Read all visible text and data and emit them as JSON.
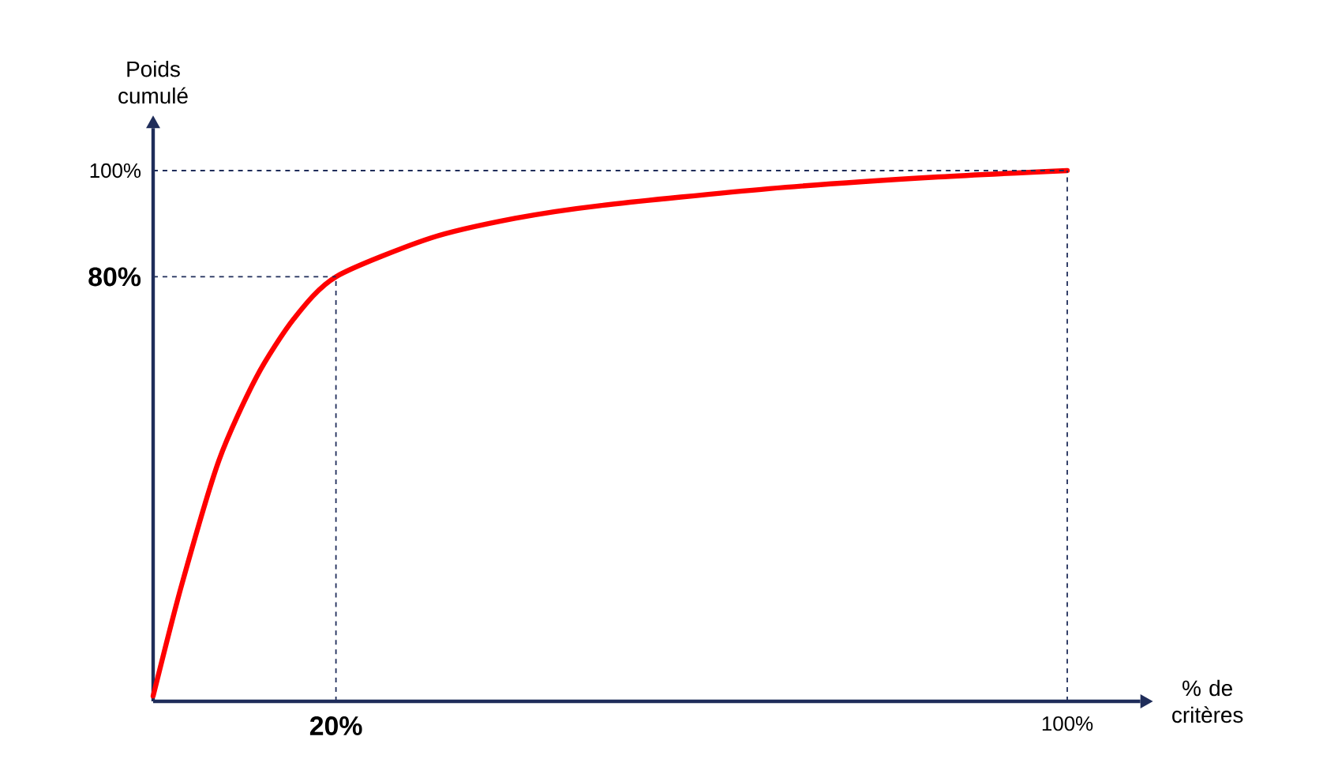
{
  "chart_data": {
    "type": "line",
    "xlabel": "% de critères",
    "ylabel": "Poids cumulé",
    "x": [
      0,
      3.1,
      7.2,
      11.3,
      15.4,
      20,
      30.4,
      39.6,
      48.9,
      67.4,
      85.9,
      100
    ],
    "series": [
      {
        "color": "#ff0000",
        "values": [
          1,
          21.8,
          45.4,
          61.1,
          72.1,
          80,
          87.3,
          91.0,
          93.4,
          96.6,
          98.8,
          100
        ]
      }
    ],
    "xlim": [
      0,
      108
    ],
    "ylim": [
      0,
      108
    ],
    "xticks": [
      {
        "value": 20,
        "label": "20%"
      },
      {
        "value": 100,
        "label": "100%"
      }
    ],
    "yticks": [
      {
        "value": 80,
        "label": "80%"
      },
      {
        "value": 100,
        "label": "100%"
      }
    ],
    "ref_lines": [
      {
        "axis": "x",
        "value": 20,
        "line_style": "dashed"
      },
      {
        "axis": "y",
        "value": 80,
        "line_style": "dashed"
      },
      {
        "axis": "x",
        "value": 100,
        "line_style": "dashed"
      },
      {
        "axis": "y",
        "value": 100,
        "line_style": "dashed"
      }
    ],
    "grid": false,
    "marker": "none",
    "line_style": "solid"
  }
}
